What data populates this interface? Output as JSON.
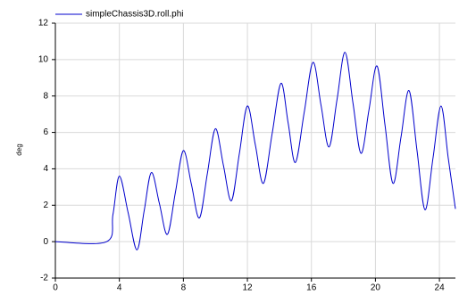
{
  "chart_data": {
    "type": "line",
    "y_label": "deg",
    "x": [
      0,
      3.2,
      3.6,
      4.0,
      4.55,
      5.1,
      5.55,
      6.0,
      6.5,
      7.0,
      7.5,
      8.0,
      8.5,
      9.0,
      9.5,
      10.0,
      10.5,
      11.0,
      11.5,
      12.0,
      12.5,
      13.0,
      13.55,
      14.1,
      14.55,
      15.0,
      15.55,
      16.1,
      16.6,
      17.1,
      17.6,
      18.1,
      18.6,
      19.1,
      19.6,
      20.1,
      20.6,
      21.1,
      21.6,
      22.1,
      22.6,
      23.1,
      23.6,
      24.1,
      24.55,
      25.0
    ],
    "series": [
      {
        "name": "simpleChassis3D.roll.phi",
        "color": "#0000cc",
        "values": [
          0,
          0,
          1.5,
          3.6,
          1.58,
          -0.45,
          1.7,
          3.8,
          2.1,
          0.4,
          2.7,
          5.0,
          3.15,
          1.3,
          3.75,
          6.2,
          4.2,
          2.25,
          4.85,
          7.45,
          5.3,
          3.2,
          5.95,
          8.7,
          6.5,
          4.35,
          7.1,
          9.85,
          7.5,
          5.2,
          7.8,
          10.4,
          7.6,
          4.85,
          7.25,
          9.65,
          6.4,
          3.2,
          5.75,
          8.3,
          5.0,
          1.75,
          4.6,
          7.45,
          4.6,
          1.8
        ]
      }
    ],
    "xlim": [
      0,
      25
    ],
    "xticks": [
      0,
      4,
      8,
      12,
      16,
      20,
      24
    ],
    "ylim": [
      -2,
      12
    ],
    "yticks": [
      -2,
      0,
      2,
      4,
      6,
      8,
      10,
      12
    ],
    "grid": true,
    "legend": "top-left"
  }
}
